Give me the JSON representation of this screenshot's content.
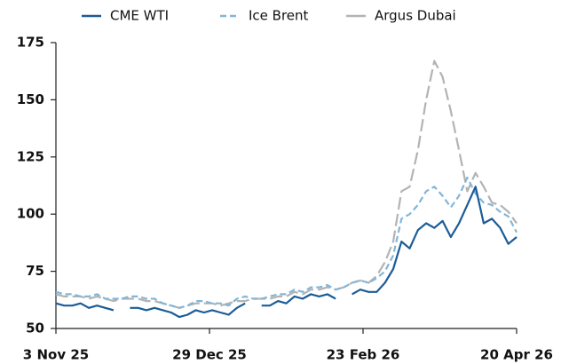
{
  "chart_data": {
    "type": "line",
    "legend": "top",
    "x": [
      "2025-11-03",
      "2025-11-06",
      "2025-11-09",
      "2025-11-12",
      "2025-11-15",
      "2025-11-18",
      "2025-11-21",
      "2025-11-24",
      "2025-11-27",
      "2025-11-30",
      "2025-12-03",
      "2025-12-06",
      "2025-12-09",
      "2025-12-12",
      "2025-12-15",
      "2025-12-18",
      "2025-12-21",
      "2025-12-24",
      "2025-12-27",
      "2025-12-30",
      "2026-01-02",
      "2026-01-05",
      "2026-01-08",
      "2026-01-11",
      "2026-01-14",
      "2026-01-17",
      "2026-01-20",
      "2026-01-23",
      "2026-01-26",
      "2026-01-29",
      "2026-02-01",
      "2026-02-04",
      "2026-02-07",
      "2026-02-10",
      "2026-02-13",
      "2026-02-16",
      "2026-02-19",
      "2026-02-22",
      "2026-02-25",
      "2026-02-28",
      "2026-03-03",
      "2026-03-06",
      "2026-03-09",
      "2026-03-12",
      "2026-03-15",
      "2026-03-18",
      "2026-03-21",
      "2026-03-24",
      "2026-03-27",
      "2026-03-30",
      "2026-04-02",
      "2026-04-05",
      "2026-04-08",
      "2026-04-11",
      "2026-04-14",
      "2026-04-17",
      "2026-04-20"
    ],
    "series": [
      {
        "name": "CME WTI",
        "color": "#1b5c97",
        "dash": "solid",
        "values": [
          61,
          60,
          60,
          61,
          59,
          60,
          59,
          58,
          null,
          59,
          59,
          58,
          59,
          58,
          57,
          55,
          56,
          58,
          57,
          58,
          57,
          56,
          59,
          61,
          null,
          60,
          60,
          62,
          61,
          64,
          63,
          65,
          64,
          65,
          63,
          null,
          65,
          67,
          66,
          66,
          70,
          76,
          88,
          85,
          93,
          96,
          94,
          97,
          90,
          96,
          104,
          112,
          96,
          98,
          94,
          87,
          90
        ]
      },
      {
        "name": "Ice Brent",
        "color": "#82b6d8",
        "dash": "dashed",
        "values": [
          66,
          65,
          65,
          64,
          64,
          65,
          63,
          63,
          63,
          64,
          64,
          63,
          63,
          61,
          60,
          59,
          60,
          62,
          62,
          61,
          61,
          60,
          63,
          64,
          63,
          63,
          64,
          65,
          65,
          67,
          66,
          68,
          68,
          69,
          67,
          68,
          70,
          71,
          70,
          72,
          75,
          82,
          98,
          100,
          104,
          110,
          112,
          108,
          103,
          108,
          116,
          109,
          105,
          104,
          101,
          99,
          92
        ]
      },
      {
        "name": "Argus Dubai",
        "color": "#b3b3b3",
        "dash": "longdash",
        "values": [
          65,
          64,
          64,
          64,
          63,
          64,
          63,
          62,
          63,
          63,
          63,
          62,
          62,
          61,
          60,
          59,
          60,
          61,
          61,
          61,
          60,
          61,
          62,
          62,
          63,
          63,
          63,
          64,
          64,
          66,
          65,
          67,
          67,
          68,
          67,
          68,
          70,
          71,
          70,
          73,
          79,
          88,
          110,
          112,
          128,
          150,
          167,
          160,
          145,
          128,
          110,
          118,
          112,
          105,
          104,
          101,
          96
        ]
      }
    ],
    "xlim": [
      "2025-11-03",
      "2026-04-20"
    ],
    "xticks": [
      {
        "value": "2025-11-03",
        "label": "3 Nov 25"
      },
      {
        "value": "2025-12-29",
        "label": "29 Dec 25"
      },
      {
        "value": "2026-02-23",
        "label": "23 Feb 26"
      },
      {
        "value": "2026-04-20",
        "label": "20 Apr 26"
      }
    ],
    "ylim": [
      50,
      175
    ],
    "yticks": [
      50,
      75,
      100,
      125,
      150,
      175
    ]
  }
}
